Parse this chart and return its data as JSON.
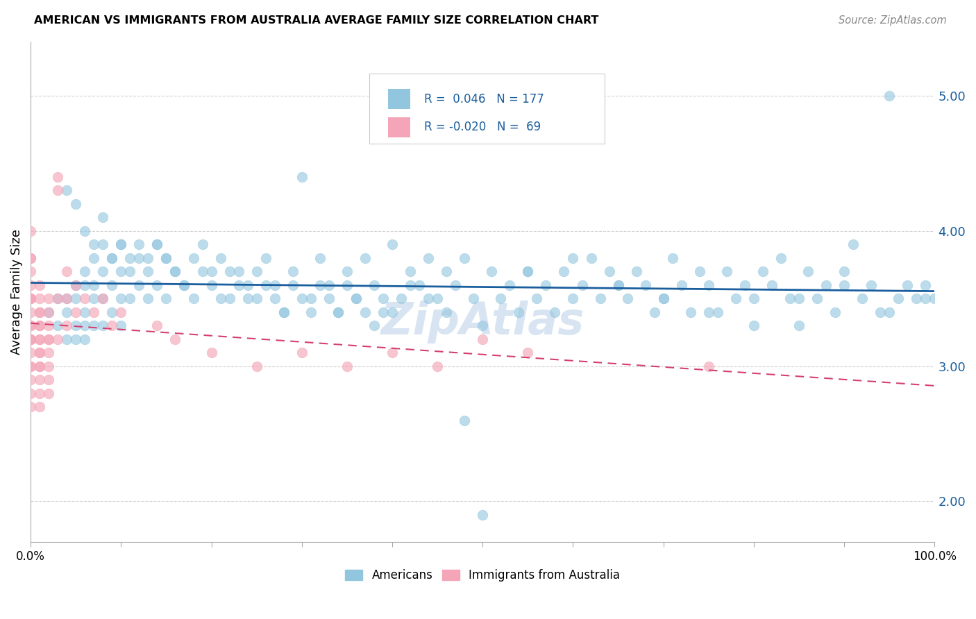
{
  "title": "AMERICAN VS IMMIGRANTS FROM AUSTRALIA AVERAGE FAMILY SIZE CORRELATION CHART",
  "source": "Source: ZipAtlas.com",
  "ylabel": "Average Family Size",
  "xlim": [
    0.0,
    1.0
  ],
  "ylim": [
    1.7,
    5.4
  ],
  "yticks": [
    2.0,
    3.0,
    4.0,
    5.0
  ],
  "xticks": [
    0.0,
    0.1,
    0.2,
    0.3,
    0.4,
    0.5,
    0.6,
    0.7,
    0.8,
    0.9,
    1.0
  ],
  "xticklabels": [
    "0.0%",
    "",
    "",
    "",
    "",
    "",
    "",
    "",
    "",
    "",
    "100.0%"
  ],
  "blue_color": "#92c5de",
  "pink_color": "#f4a6b8",
  "blue_line_color": "#1a5e9e",
  "pink_line_color": "#d44070",
  "tick_color": "#1a5e9e",
  "blue_r": 0.046,
  "blue_n": 177,
  "pink_r": -0.02,
  "pink_n": 69,
  "blue_scatter_x": [
    0.02,
    0.03,
    0.03,
    0.04,
    0.04,
    0.04,
    0.05,
    0.05,
    0.05,
    0.05,
    0.06,
    0.06,
    0.06,
    0.06,
    0.06,
    0.07,
    0.07,
    0.07,
    0.07,
    0.08,
    0.08,
    0.08,
    0.08,
    0.09,
    0.09,
    0.09,
    0.1,
    0.1,
    0.1,
    0.1,
    0.11,
    0.11,
    0.12,
    0.12,
    0.13,
    0.13,
    0.14,
    0.14,
    0.15,
    0.15,
    0.16,
    0.17,
    0.18,
    0.19,
    0.2,
    0.21,
    0.22,
    0.23,
    0.24,
    0.25,
    0.26,
    0.27,
    0.28,
    0.29,
    0.3,
    0.31,
    0.32,
    0.33,
    0.34,
    0.35,
    0.36,
    0.37,
    0.38,
    0.39,
    0.4,
    0.41,
    0.42,
    0.43,
    0.44,
    0.45,
    0.46,
    0.47,
    0.48,
    0.49,
    0.5,
    0.51,
    0.52,
    0.53,
    0.54,
    0.55,
    0.56,
    0.57,
    0.58,
    0.59,
    0.6,
    0.61,
    0.62,
    0.63,
    0.64,
    0.65,
    0.66,
    0.67,
    0.68,
    0.69,
    0.7,
    0.71,
    0.72,
    0.73,
    0.74,
    0.75,
    0.76,
    0.77,
    0.78,
    0.79,
    0.8,
    0.81,
    0.82,
    0.83,
    0.84,
    0.85,
    0.86,
    0.87,
    0.88,
    0.89,
    0.9,
    0.91,
    0.92,
    0.93,
    0.94,
    0.95,
    0.96,
    0.97,
    0.98,
    0.99,
    0.99,
    0.04,
    0.05,
    0.06,
    0.07,
    0.08,
    0.09,
    0.1,
    0.11,
    0.12,
    0.13,
    0.14,
    0.15,
    0.16,
    0.17,
    0.18,
    0.19,
    0.2,
    0.21,
    0.22,
    0.23,
    0.24,
    0.25,
    0.26,
    0.27,
    0.28,
    0.29,
    0.3,
    0.31,
    0.32,
    0.33,
    0.34,
    0.35,
    0.36,
    0.37,
    0.38,
    0.39,
    0.4,
    0.42,
    0.44,
    0.46,
    0.48,
    0.5,
    0.55,
    0.6,
    0.65,
    0.7,
    0.75,
    0.8,
    0.85,
    0.9,
    0.95,
    1.0
  ],
  "blue_scatter_y": [
    3.4,
    3.5,
    3.3,
    3.5,
    3.4,
    3.2,
    3.6,
    3.5,
    3.3,
    3.2,
    3.7,
    3.6,
    3.4,
    3.3,
    3.2,
    3.8,
    3.6,
    3.5,
    3.3,
    3.9,
    3.7,
    3.5,
    3.3,
    3.8,
    3.6,
    3.4,
    3.9,
    3.7,
    3.5,
    3.3,
    3.8,
    3.5,
    3.9,
    3.6,
    3.8,
    3.5,
    3.9,
    3.6,
    3.8,
    3.5,
    3.7,
    3.6,
    3.8,
    3.9,
    3.7,
    3.8,
    3.5,
    3.7,
    3.6,
    3.5,
    3.8,
    3.6,
    3.4,
    3.7,
    4.4,
    3.5,
    3.8,
    3.6,
    3.4,
    3.7,
    3.5,
    3.8,
    3.6,
    3.4,
    3.9,
    3.5,
    3.7,
    3.6,
    3.8,
    3.5,
    3.7,
    3.6,
    3.8,
    3.5,
    3.3,
    3.7,
    3.5,
    3.6,
    3.4,
    3.7,
    3.5,
    3.6,
    3.4,
    3.7,
    3.5,
    3.6,
    3.8,
    3.5,
    3.7,
    3.6,
    3.5,
    3.7,
    3.6,
    3.4,
    3.5,
    3.8,
    3.6,
    3.4,
    3.7,
    3.6,
    3.4,
    3.7,
    3.5,
    3.6,
    3.5,
    3.7,
    3.6,
    3.8,
    3.5,
    3.3,
    3.7,
    3.5,
    3.6,
    3.4,
    3.7,
    3.9,
    3.5,
    3.6,
    3.4,
    5.0,
    3.5,
    3.6,
    3.5,
    3.6,
    3.5,
    4.3,
    4.2,
    4.0,
    3.9,
    4.1,
    3.8,
    3.9,
    3.7,
    3.8,
    3.7,
    3.9,
    3.8,
    3.7,
    3.6,
    3.5,
    3.7,
    3.6,
    3.5,
    3.7,
    3.6,
    3.5,
    3.7,
    3.6,
    3.5,
    3.4,
    3.6,
    3.5,
    3.4,
    3.6,
    3.5,
    3.4,
    3.6,
    3.5,
    3.4,
    3.3,
    3.5,
    3.4,
    3.6,
    3.5,
    3.4,
    2.6,
    1.9,
    3.7,
    3.8,
    3.6,
    3.5,
    3.4,
    3.3,
    3.5,
    3.6,
    3.4,
    3.5
  ],
  "pink_scatter_x": [
    0.0,
    0.0,
    0.0,
    0.0,
    0.0,
    0.0,
    0.0,
    0.0,
    0.0,
    0.0,
    0.0,
    0.0,
    0.0,
    0.0,
    0.0,
    0.0,
    0.0,
    0.0,
    0.0,
    0.0,
    0.01,
    0.01,
    0.01,
    0.01,
    0.01,
    0.01,
    0.01,
    0.01,
    0.01,
    0.01,
    0.01,
    0.01,
    0.01,
    0.01,
    0.01,
    0.02,
    0.02,
    0.02,
    0.02,
    0.02,
    0.02,
    0.02,
    0.02,
    0.02,
    0.03,
    0.03,
    0.03,
    0.03,
    0.04,
    0.04,
    0.04,
    0.05,
    0.05,
    0.06,
    0.07,
    0.08,
    0.09,
    0.1,
    0.14,
    0.16,
    0.2,
    0.25,
    0.3,
    0.35,
    0.4,
    0.45,
    0.5,
    0.55,
    0.75
  ],
  "pink_scatter_y": [
    3.8,
    3.5,
    4.0,
    3.3,
    3.6,
    3.0,
    3.8,
    3.2,
    3.4,
    2.9,
    3.5,
    3.1,
    3.7,
    3.2,
    2.8,
    3.3,
    3.0,
    3.5,
    2.7,
    3.2,
    3.4,
    3.1,
    3.6,
    3.2,
    3.0,
    3.3,
    2.8,
    3.5,
    3.1,
    2.9,
    3.2,
    3.4,
    3.0,
    2.7,
    3.3,
    3.2,
    3.0,
    3.3,
    2.8,
    3.1,
    3.4,
    2.9,
    3.2,
    3.5,
    4.3,
    4.4,
    3.2,
    3.5,
    3.5,
    3.7,
    3.3,
    3.6,
    3.4,
    3.5,
    3.4,
    3.5,
    3.3,
    3.4,
    3.3,
    3.2,
    3.1,
    3.0,
    3.1,
    3.0,
    3.1,
    3.0,
    3.2,
    3.1,
    3.0
  ]
}
